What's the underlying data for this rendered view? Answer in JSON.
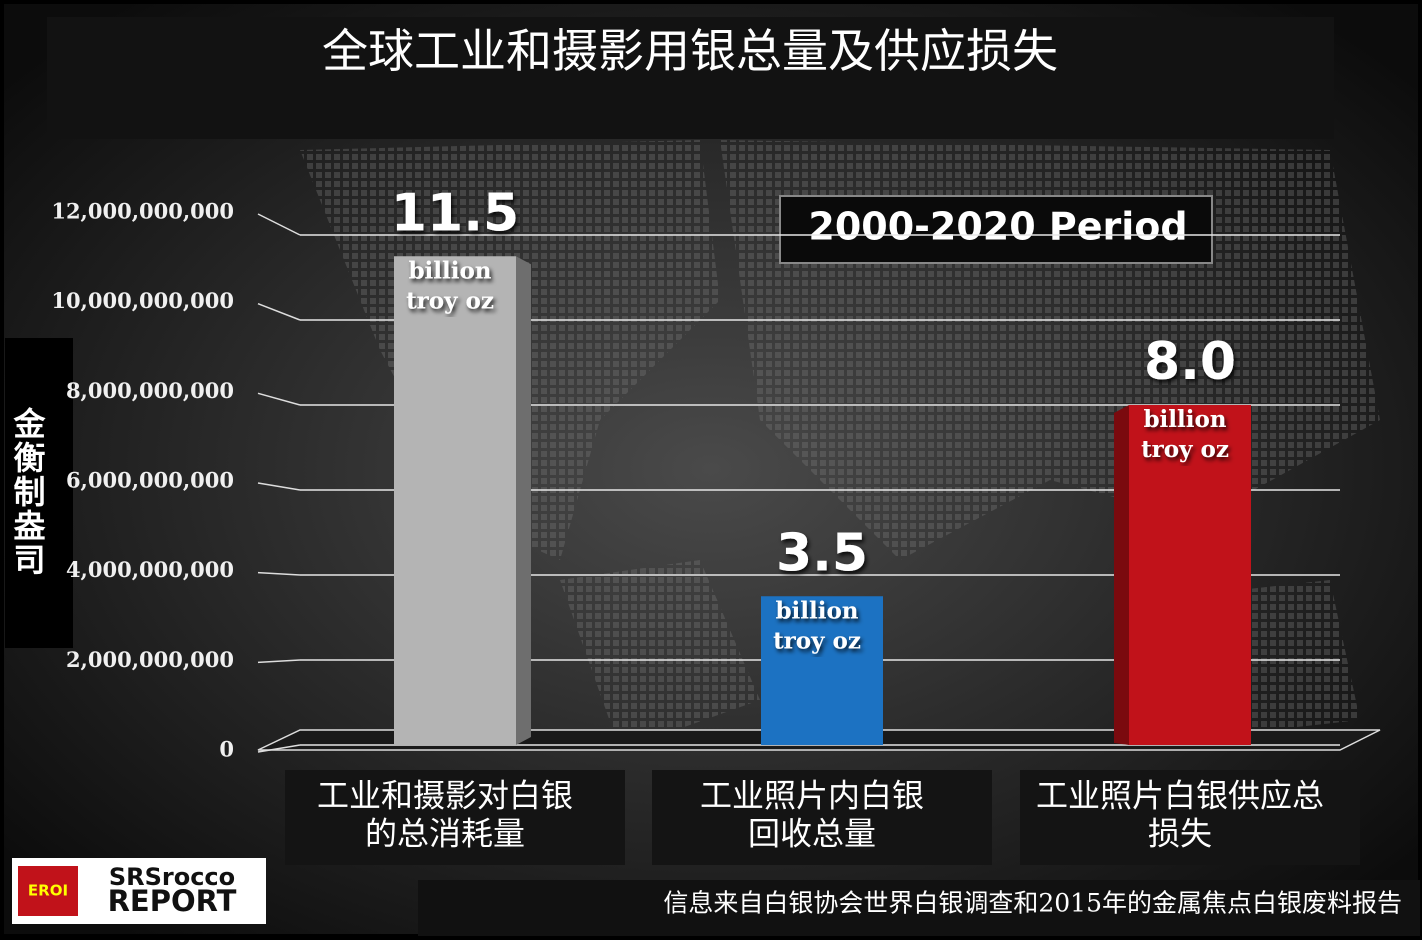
{
  "chart_data": {
    "type": "bar",
    "title": "全球工业和摄影用银总量及供应损失",
    "y_axis_label": "金衡制盎司",
    "period_label": "2000-2020 Period",
    "categories": [
      [
        "工业和摄影对白银",
        "的总消耗量"
      ],
      [
        "工业照片内白银",
        "回收总量"
      ],
      [
        "工业照片白银供应总",
        "损失"
      ]
    ],
    "values": [
      11500000000,
      3500000000,
      8000000000
    ],
    "value_labels": [
      "11.5",
      "3.5",
      "8.0"
    ],
    "value_label_unit_lines": [
      "billion",
      "troy oz"
    ],
    "colors": [
      "#b4b4b4",
      "#1c72c2",
      "#c1121a"
    ],
    "ylim": [
      0,
      12000000000
    ],
    "yticks": [
      0,
      {
        "value": 2000000000,
        "label": "2,000,000,000"
      },
      {
        "value": 4000000000,
        "label": "4,000,000,000"
      },
      {
        "value": 6000000000,
        "label": "6,000,000,000"
      },
      {
        "value": 8000000000,
        "label": "8,000,000,000"
      },
      {
        "value": 10000000000,
        "label": "10,000,000,000"
      },
      {
        "value": 12000000000,
        "label": "12,000,000,000"
      }
    ],
    "grid": true,
    "source": "信息来自白银协会世界白银调查和2015年的金属焦点白银废料报告",
    "logo": [
      "EROI",
      "SRSrocco",
      "REPORT"
    ]
  }
}
